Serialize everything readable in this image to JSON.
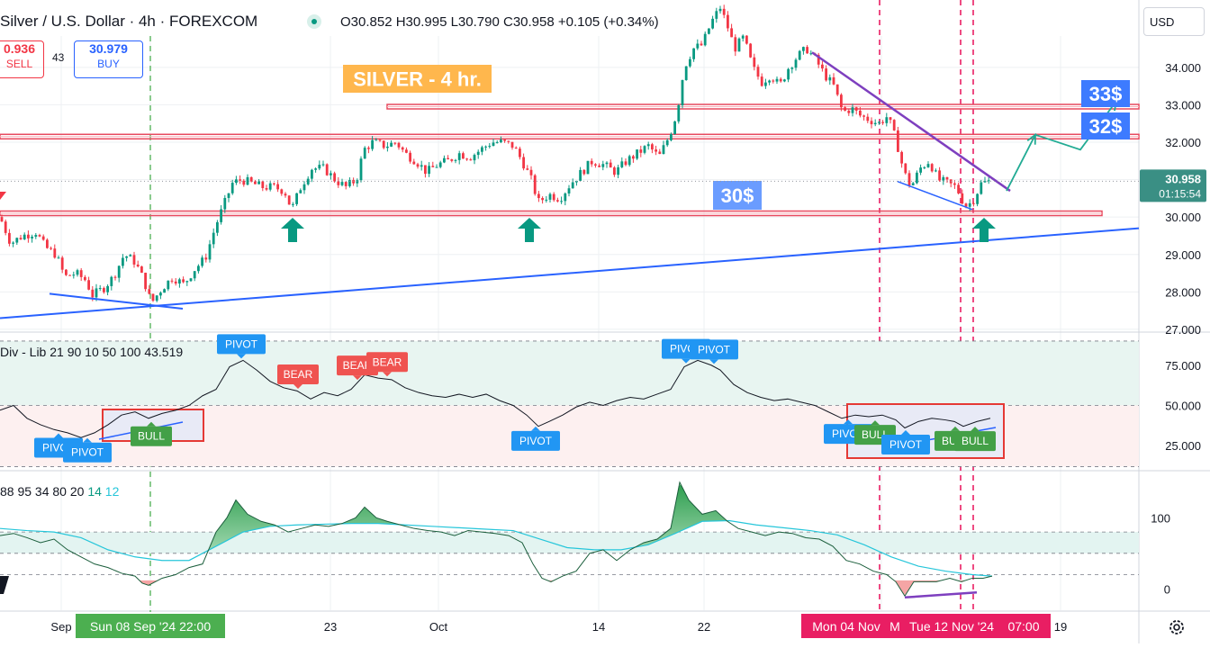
{
  "header": {
    "symbol": "Silver / U.S. Dollar · 4h · FOREXCOM",
    "ohlc": "O30.852 H30.995 L30.790 C30.958 +0.105 (+0.34%)"
  },
  "trade": {
    "sell_price": "0.936",
    "sell_label": "SELL",
    "spread": "43",
    "buy_price": "30.979",
    "buy_label": "BUY"
  },
  "currency": "USD",
  "annotations": {
    "title": "SILVER - 4 hr.",
    "label_30": "30$",
    "label_32": "32$",
    "label_33": "33$"
  },
  "price_badge": {
    "price": "30.958",
    "countdown": "01:15:54"
  },
  "indicators": {
    "rsi_title": "Div - Lib 21 90 10 50 100",
    "rsi_value": "43.519",
    "osc_params": "88 95 34 80 20",
    "osc_fast": "14",
    "osc_slow": "12"
  },
  "time_labels": {
    "highlight_green": "Sun 08 Sep '24   22:00",
    "highlight_red_1": "Mon 04 Nov",
    "highlight_red_2": "Tue 12 Nov '24",
    "highlight_red_time": "07:00"
  },
  "colors": {
    "up": "#089981",
    "down": "#f23645",
    "blue": "#2962ff",
    "purple": "#7e3fbf",
    "level": "#e84a5f",
    "teal": "#22ab94",
    "green_hl": "#4caf50",
    "pink_hl": "#e91e63"
  },
  "chart_data": [
    {
      "type": "candlestick",
      "title": "Silver / U.S. Dollar · 4h · FOREXCOM",
      "x_ticks": [
        "Sep",
        "23",
        "Oct",
        "14",
        "22",
        "19"
      ],
      "y_ticks": [
        "27.000",
        "28.000",
        "29.000",
        "30.000",
        "31.000",
        "32.000",
        "33.000",
        "34.000"
      ],
      "ylim": [
        26.95,
        35.8
      ],
      "levels": [
        30.1,
        32.15,
        32.95
      ],
      "close_path": [
        [
          0,
          30.0
        ],
        [
          12,
          29.3
        ],
        [
          25,
          29.5
        ],
        [
          40,
          29.6
        ],
        [
          50,
          29.2
        ],
        [
          62,
          29.0
        ],
        [
          72,
          28.4
        ],
        [
          84,
          28.5
        ],
        [
          96,
          28.3
        ],
        [
          102,
          27.9
        ],
        [
          115,
          28.1
        ],
        [
          126,
          28.4
        ],
        [
          138,
          29.0
        ],
        [
          150,
          28.8
        ],
        [
          160,
          28.3
        ],
        [
          168,
          27.7
        ],
        [
          180,
          28.1
        ],
        [
          192,
          28.4
        ],
        [
          204,
          28.2
        ],
        [
          216,
          28.6
        ],
        [
          228,
          28.9
        ],
        [
          240,
          29.8
        ],
        [
          250,
          30.4
        ],
        [
          258,
          30.9
        ],
        [
          268,
          31.0
        ],
        [
          280,
          30.9
        ],
        [
          292,
          30.8
        ],
        [
          304,
          30.8
        ],
        [
          316,
          30.7
        ],
        [
          324,
          30.2
        ],
        [
          334,
          30.8
        ],
        [
          346,
          31.3
        ],
        [
          360,
          31.3
        ],
        [
          372,
          31.0
        ],
        [
          384,
          30.8
        ],
        [
          396,
          31.0
        ],
        [
          404,
          31.8
        ],
        [
          414,
          32.0
        ],
        [
          428,
          31.9
        ],
        [
          440,
          32.0
        ],
        [
          450,
          31.7
        ],
        [
          462,
          31.5
        ],
        [
          474,
          31.2
        ],
        [
          486,
          31.4
        ],
        [
          498,
          31.5
        ],
        [
          510,
          31.7
        ],
        [
          522,
          31.6
        ],
        [
          534,
          31.8
        ],
        [
          546,
          32.0
        ],
        [
          558,
          32.0
        ],
        [
          570,
          31.9
        ],
        [
          580,
          31.5
        ],
        [
          590,
          31.0
        ],
        [
          598,
          30.4
        ],
        [
          610,
          30.6
        ],
        [
          622,
          30.5
        ],
        [
          634,
          30.9
        ],
        [
          646,
          31.2
        ],
        [
          658,
          31.5
        ],
        [
          670,
          31.4
        ],
        [
          684,
          31.2
        ],
        [
          696,
          31.5
        ],
        [
          708,
          31.7
        ],
        [
          720,
          31.9
        ],
        [
          732,
          31.6
        ],
        [
          744,
          32.2
        ],
        [
          752,
          32.8
        ],
        [
          760,
          34.0
        ],
        [
          770,
          34.5
        ],
        [
          780,
          34.6
        ],
        [
          790,
          35.2
        ],
        [
          800,
          35.6
        ],
        [
          808,
          35.1
        ],
        [
          816,
          34.5
        ],
        [
          826,
          34.8
        ],
        [
          836,
          34.0
        ],
        [
          846,
          33.6
        ],
        [
          856,
          33.8
        ],
        [
          866,
          33.5
        ],
        [
          876,
          34.0
        ],
        [
          886,
          34.3
        ],
        [
          896,
          34.5
        ],
        [
          906,
          34.2
        ],
        [
          916,
          33.8
        ],
        [
          926,
          33.5
        ],
        [
          936,
          32.8
        ],
        [
          946,
          32.9
        ],
        [
          956,
          32.7
        ],
        [
          966,
          32.6
        ],
        [
          976,
          32.5
        ],
        [
          986,
          32.7
        ],
        [
          996,
          32.0
        ],
        [
          1004,
          31.2
        ],
        [
          1012,
          30.8
        ],
        [
          1022,
          31.3
        ],
        [
          1032,
          31.5
        ],
        [
          1042,
          31.0
        ],
        [
          1052,
          30.9
        ],
        [
          1062,
          30.8
        ],
        [
          1072,
          30.3
        ],
        [
          1080,
          30.4
        ],
        [
          1090,
          30.9
        ],
        [
          1098,
          30.95
        ]
      ],
      "lines": {
        "blue_trend": [
          [
            0,
            27.3
          ],
          [
            1265,
            29.7
          ]
        ],
        "blue_short": [
          [
            55,
            27.95
          ],
          [
            203,
            27.55
          ]
        ],
        "purple_trend": [
          [
            902,
            34.4
          ],
          [
            1122,
            30.7
          ]
        ],
        "blue_channel": [
          [
            997,
            30.95
          ],
          [
            1080,
            30.2
          ]
        ],
        "projection": [
          [
            1118,
            30.7
          ],
          [
            1150,
            32.2
          ],
          [
            1200,
            31.8
          ],
          [
            1240,
            33.1
          ]
        ]
      },
      "markers_up": [
        325,
        588,
        1093
      ]
    },
    {
      "type": "line",
      "title": "Div - Lib 21 90 10 50 100",
      "value": 43.519,
      "y_ticks": [
        "25.000",
        "50.000",
        "75.000"
      ],
      "ylim": [
        10,
        95
      ],
      "bands": [
        50,
        90
      ],
      "path": [
        [
          0,
          47
        ],
        [
          15,
          50
        ],
        [
          30,
          42
        ],
        [
          45,
          38
        ],
        [
          60,
          35
        ],
        [
          75,
          33
        ],
        [
          90,
          30
        ],
        [
          105,
          33
        ],
        [
          120,
          38
        ],
        [
          135,
          44
        ],
        [
          150,
          46
        ],
        [
          165,
          42
        ],
        [
          180,
          45
        ],
        [
          195,
          47
        ],
        [
          210,
          50
        ],
        [
          225,
          56
        ],
        [
          240,
          60
        ],
        [
          255,
          74
        ],
        [
          270,
          78
        ],
        [
          285,
          72
        ],
        [
          300,
          65
        ],
        [
          315,
          61
        ],
        [
          330,
          59
        ],
        [
          345,
          54
        ],
        [
          360,
          58
        ],
        [
          375,
          56
        ],
        [
          390,
          60
        ],
        [
          405,
          69
        ],
        [
          420,
          67
        ],
        [
          435,
          66
        ],
        [
          450,
          61
        ],
        [
          465,
          58
        ],
        [
          480,
          56
        ],
        [
          495,
          55
        ],
        [
          510,
          57
        ],
        [
          525,
          55
        ],
        [
          540,
          57
        ],
        [
          555,
          53
        ],
        [
          570,
          50
        ],
        [
          585,
          44
        ],
        [
          598,
          37
        ],
        [
          610,
          40
        ],
        [
          625,
          44
        ],
        [
          640,
          49
        ],
        [
          655,
          52
        ],
        [
          670,
          50
        ],
        [
          685,
          53
        ],
        [
          700,
          55
        ],
        [
          715,
          54
        ],
        [
          730,
          57
        ],
        [
          745,
          60
        ],
        [
          760,
          74
        ],
        [
          775,
          78
        ],
        [
          790,
          75
        ],
        [
          800,
          72
        ],
        [
          815,
          63
        ],
        [
          830,
          58
        ],
        [
          845,
          55
        ],
        [
          860,
          53
        ],
        [
          875,
          54
        ],
        [
          890,
          52
        ],
        [
          905,
          50
        ],
        [
          920,
          46
        ],
        [
          935,
          42
        ],
        [
          950,
          44
        ],
        [
          965,
          43
        ],
        [
          980,
          44
        ],
        [
          995,
          41
        ],
        [
          1005,
          36
        ],
        [
          1020,
          40
        ],
        [
          1035,
          42
        ],
        [
          1050,
          41
        ],
        [
          1060,
          40
        ],
        [
          1070,
          37
        ],
        [
          1085,
          40
        ],
        [
          1100,
          42
        ]
      ],
      "labels": [
        {
          "text": "PIVOT",
          "x": 65,
          "kind": "pivot",
          "below": true
        },
        {
          "text": "PIVOT",
          "x": 97,
          "kind": "pivot",
          "below": true
        },
        {
          "text": "BULL",
          "x": 168,
          "kind": "bull",
          "below": true
        },
        {
          "text": "PIVOT",
          "x": 268,
          "kind": "pivot",
          "below": false
        },
        {
          "text": "BEAR",
          "x": 331,
          "kind": "bear",
          "below": false
        },
        {
          "text": "BEAR",
          "x": 397,
          "kind": "bear",
          "below": false
        },
        {
          "text": "BEAR",
          "x": 430,
          "kind": "bear",
          "below": false
        },
        {
          "text": "PIVOT",
          "x": 595,
          "kind": "pivot",
          "below": true
        },
        {
          "text": "PIVOT",
          "x": 762,
          "kind": "pivot",
          "below": false
        },
        {
          "text": "PIVOT",
          "x": 793,
          "kind": "pivot",
          "below": false
        },
        {
          "text": "PIVOT",
          "x": 942,
          "kind": "pivot",
          "below": true
        },
        {
          "text": "BULL",
          "x": 972,
          "kind": "bull",
          "below": true
        },
        {
          "text": "PIVOT",
          "x": 1006,
          "kind": "pivot",
          "below": true
        },
        {
          "text": "BULL",
          "x": 1061,
          "kind": "bull",
          "below": true
        },
        {
          "text": "BULL",
          "x": 1083,
          "kind": "bull",
          "below": true
        }
      ]
    },
    {
      "type": "area",
      "title": "88 95 34 80 20",
      "y_ticks": [
        "0",
        "100"
      ],
      "ylim": [
        -30,
        165
      ],
      "guides": [
        20,
        50,
        80
      ],
      "osc": [
        [
          0,
          75
        ],
        [
          15,
          78
        ],
        [
          30,
          72
        ],
        [
          45,
          65
        ],
        [
          60,
          70
        ],
        [
          75,
          55
        ],
        [
          90,
          45
        ],
        [
          105,
          35
        ],
        [
          120,
          30
        ],
        [
          135,
          22
        ],
        [
          150,
          18
        ],
        [
          158,
          8
        ],
        [
          165,
          5
        ],
        [
          180,
          15
        ],
        [
          195,
          20
        ],
        [
          210,
          30
        ],
        [
          225,
          35
        ],
        [
          240,
          80
        ],
        [
          252,
          100
        ],
        [
          262,
          125
        ],
        [
          275,
          105
        ],
        [
          290,
          95
        ],
        [
          305,
          90
        ],
        [
          320,
          80
        ],
        [
          335,
          85
        ],
        [
          350,
          90
        ],
        [
          365,
          88
        ],
        [
          380,
          92
        ],
        [
          395,
          100
        ],
        [
          405,
          115
        ],
        [
          418,
          100
        ],
        [
          430,
          95
        ],
        [
          445,
          90
        ],
        [
          460,
          85
        ],
        [
          475,
          82
        ],
        [
          490,
          80
        ],
        [
          505,
          75
        ],
        [
          520,
          82
        ],
        [
          535,
          80
        ],
        [
          550,
          78
        ],
        [
          565,
          75
        ],
        [
          580,
          65
        ],
        [
          592,
          35
        ],
        [
          602,
          15
        ],
        [
          612,
          10
        ],
        [
          625,
          18
        ],
        [
          640,
          25
        ],
        [
          655,
          50
        ],
        [
          670,
          55
        ],
        [
          685,
          40
        ],
        [
          700,
          55
        ],
        [
          715,
          65
        ],
        [
          730,
          70
        ],
        [
          745,
          85
        ],
        [
          755,
          150
        ],
        [
          765,
          125
        ],
        [
          780,
          105
        ],
        [
          795,
          110
        ],
        [
          808,
          95
        ],
        [
          820,
          85
        ],
        [
          835,
          80
        ],
        [
          850,
          75
        ],
        [
          865,
          80
        ],
        [
          880,
          78
        ],
        [
          895,
          72
        ],
        [
          910,
          70
        ],
        [
          925,
          60
        ],
        [
          940,
          40
        ],
        [
          955,
          35
        ],
        [
          970,
          25
        ],
        [
          985,
          20
        ],
        [
          995,
          10
        ],
        [
          1005,
          -10
        ],
        [
          1015,
          10
        ],
        [
          1025,
          10
        ],
        [
          1040,
          10
        ],
        [
          1055,
          15
        ],
        [
          1068,
          10
        ],
        [
          1080,
          15
        ],
        [
          1092,
          15
        ],
        [
          1102,
          18
        ]
      ],
      "signal": [
        [
          0,
          85
        ],
        [
          30,
          82
        ],
        [
          60,
          80
        ],
        [
          90,
          72
        ],
        [
          120,
          55
        ],
        [
          150,
          45
        ],
        [
          180,
          40
        ],
        [
          210,
          40
        ],
        [
          240,
          60
        ],
        [
          270,
          80
        ],
        [
          300,
          88
        ],
        [
          330,
          90
        ],
        [
          360,
          91
        ],
        [
          390,
          92
        ],
        [
          420,
          92
        ],
        [
          450,
          90
        ],
        [
          480,
          88
        ],
        [
          510,
          86
        ],
        [
          540,
          84
        ],
        [
          570,
          82
        ],
        [
          600,
          70
        ],
        [
          630,
          58
        ],
        [
          660,
          55
        ],
        [
          690,
          55
        ],
        [
          720,
          62
        ],
        [
          750,
          78
        ],
        [
          780,
          95
        ],
        [
          810,
          96
        ],
        [
          840,
          90
        ],
        [
          870,
          86
        ],
        [
          900,
          82
        ],
        [
          930,
          76
        ],
        [
          960,
          62
        ],
        [
          990,
          45
        ],
        [
          1020,
          32
        ],
        [
          1050,
          25
        ],
        [
          1080,
          20
        ],
        [
          1102,
          18
        ]
      ],
      "div_line": [
        [
          1005,
          -12
        ],
        [
          1085,
          -5
        ]
      ]
    }
  ]
}
